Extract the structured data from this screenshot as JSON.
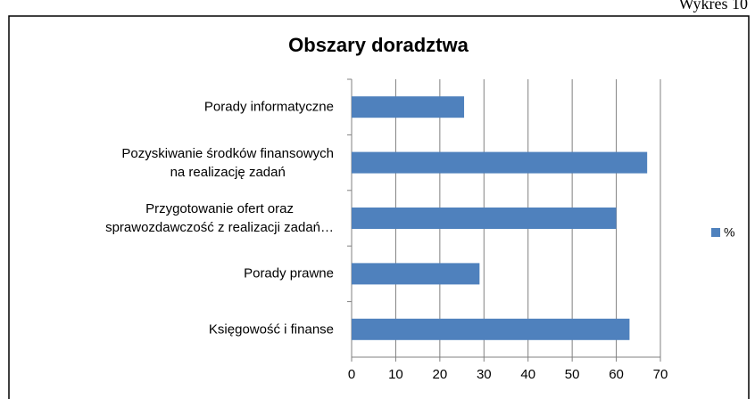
{
  "header": "Wykres 10",
  "chart_data": {
    "type": "barh",
    "title": "Obszary doradztwa",
    "categories": [
      "Porady informatyczne",
      "Pozyskiwanie środków finansowych\nna realizację zadań",
      "Przygotowanie ofert  oraz\nsprawozdawczość z realizacji zadań…",
      "Porady prawne",
      "Księgowość i finanse"
    ],
    "series": [
      {
        "name": "%",
        "color": "#4f81bd",
        "values": [
          25.5,
          67,
          60,
          29,
          63
        ]
      }
    ],
    "xlim": [
      0,
      70
    ],
    "xticks": [
      0,
      10,
      20,
      30,
      40,
      50,
      60,
      70
    ],
    "grid": true,
    "legend": "right"
  }
}
